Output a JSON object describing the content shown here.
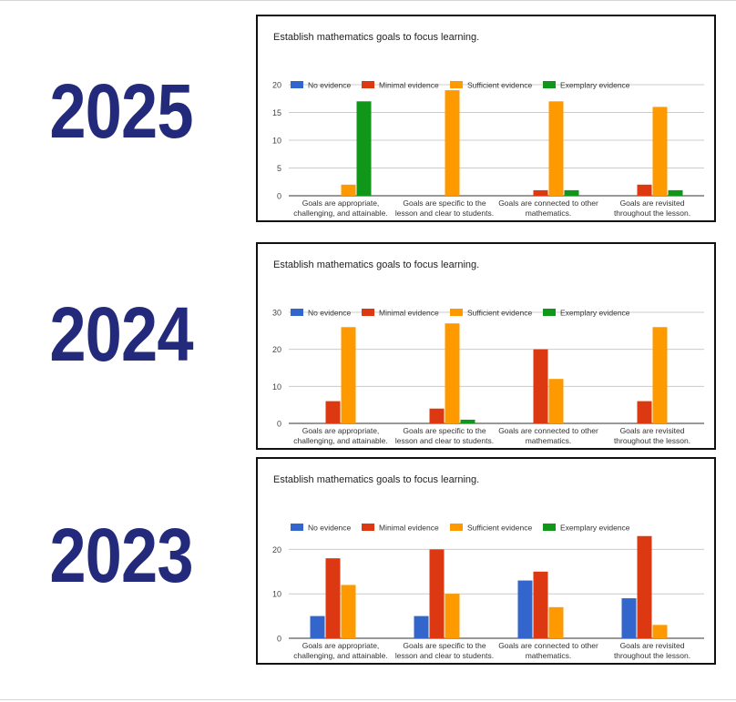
{
  "years": [
    "2025",
    "2024",
    "2023"
  ],
  "chart_data": [
    {
      "type": "bar",
      "title": "Establish mathematics goals to focus learning.",
      "categories": [
        [
          "Goals are appropriate,",
          "challenging, and attainable."
        ],
        [
          "Goals are specific to the",
          "lesson and clear to students."
        ],
        [
          "Goals are connected to other",
          "mathematics."
        ],
        [
          "Goals are revisited",
          "throughout the lesson."
        ]
      ],
      "series": [
        {
          "name": "No evidence",
          "color": "#3366cc",
          "values": [
            0,
            0,
            0,
            0
          ]
        },
        {
          "name": "Minimal evidence",
          "color": "#dc3912",
          "values": [
            0,
            0,
            1,
            2
          ]
        },
        {
          "name": "Sufficient evidence",
          "color": "#ff9900",
          "values": [
            2,
            19,
            17,
            16
          ]
        },
        {
          "name": "Exemplary evidence",
          "color": "#109618",
          "values": [
            17,
            0,
            1,
            1
          ]
        }
      ],
      "ylim": [
        0,
        20
      ],
      "yticks": [
        0,
        5,
        10,
        15,
        20
      ],
      "grid": true,
      "legend": "top"
    },
    {
      "type": "bar",
      "title": "Establish mathematics goals to focus learning.",
      "categories": [
        [
          "Goals are appropriate,",
          "challenging, and attainable."
        ],
        [
          "Goals are specific to the",
          "lesson and clear to students."
        ],
        [
          "Goals are connected to other",
          "mathematics."
        ],
        [
          "Goals are revisited",
          "throughout the lesson."
        ]
      ],
      "series": [
        {
          "name": "No evidence",
          "color": "#3366cc",
          "values": [
            0,
            0,
            0,
            0
          ]
        },
        {
          "name": "Minimal evidence",
          "color": "#dc3912",
          "values": [
            6,
            4,
            20,
            6
          ]
        },
        {
          "name": "Sufficient evidence",
          "color": "#ff9900",
          "values": [
            26,
            27,
            12,
            26
          ]
        },
        {
          "name": "Exemplary evidence",
          "color": "#109618",
          "values": [
            0,
            1,
            0,
            0
          ]
        }
      ],
      "ylim": [
        0,
        30
      ],
      "yticks": [
        0,
        10,
        20,
        30
      ],
      "grid": true,
      "legend": "top"
    },
    {
      "type": "bar",
      "title": "Establish mathematics goals to focus learning.",
      "categories": [
        [
          "Goals are appropriate,",
          "challenging, and attainable."
        ],
        [
          "Goals are specific to the",
          "lesson and clear to students."
        ],
        [
          "Goals are connected to other",
          "mathematics."
        ],
        [
          "Goals are revisited",
          "throughout the lesson."
        ]
      ],
      "series": [
        {
          "name": "No evidence",
          "color": "#3366cc",
          "values": [
            5,
            5,
            13,
            9
          ]
        },
        {
          "name": "Minimal evidence",
          "color": "#dc3912",
          "values": [
            18,
            20,
            15,
            23
          ]
        },
        {
          "name": "Sufficient evidence",
          "color": "#ff9900",
          "values": [
            12,
            10,
            7,
            3
          ]
        },
        {
          "name": "Exemplary evidence",
          "color": "#109618",
          "values": [
            0,
            0,
            0,
            0
          ]
        }
      ],
      "ylim": [
        0,
        25
      ],
      "yticks": [
        0,
        10,
        20
      ],
      "grid": true,
      "legend": "top"
    }
  ]
}
